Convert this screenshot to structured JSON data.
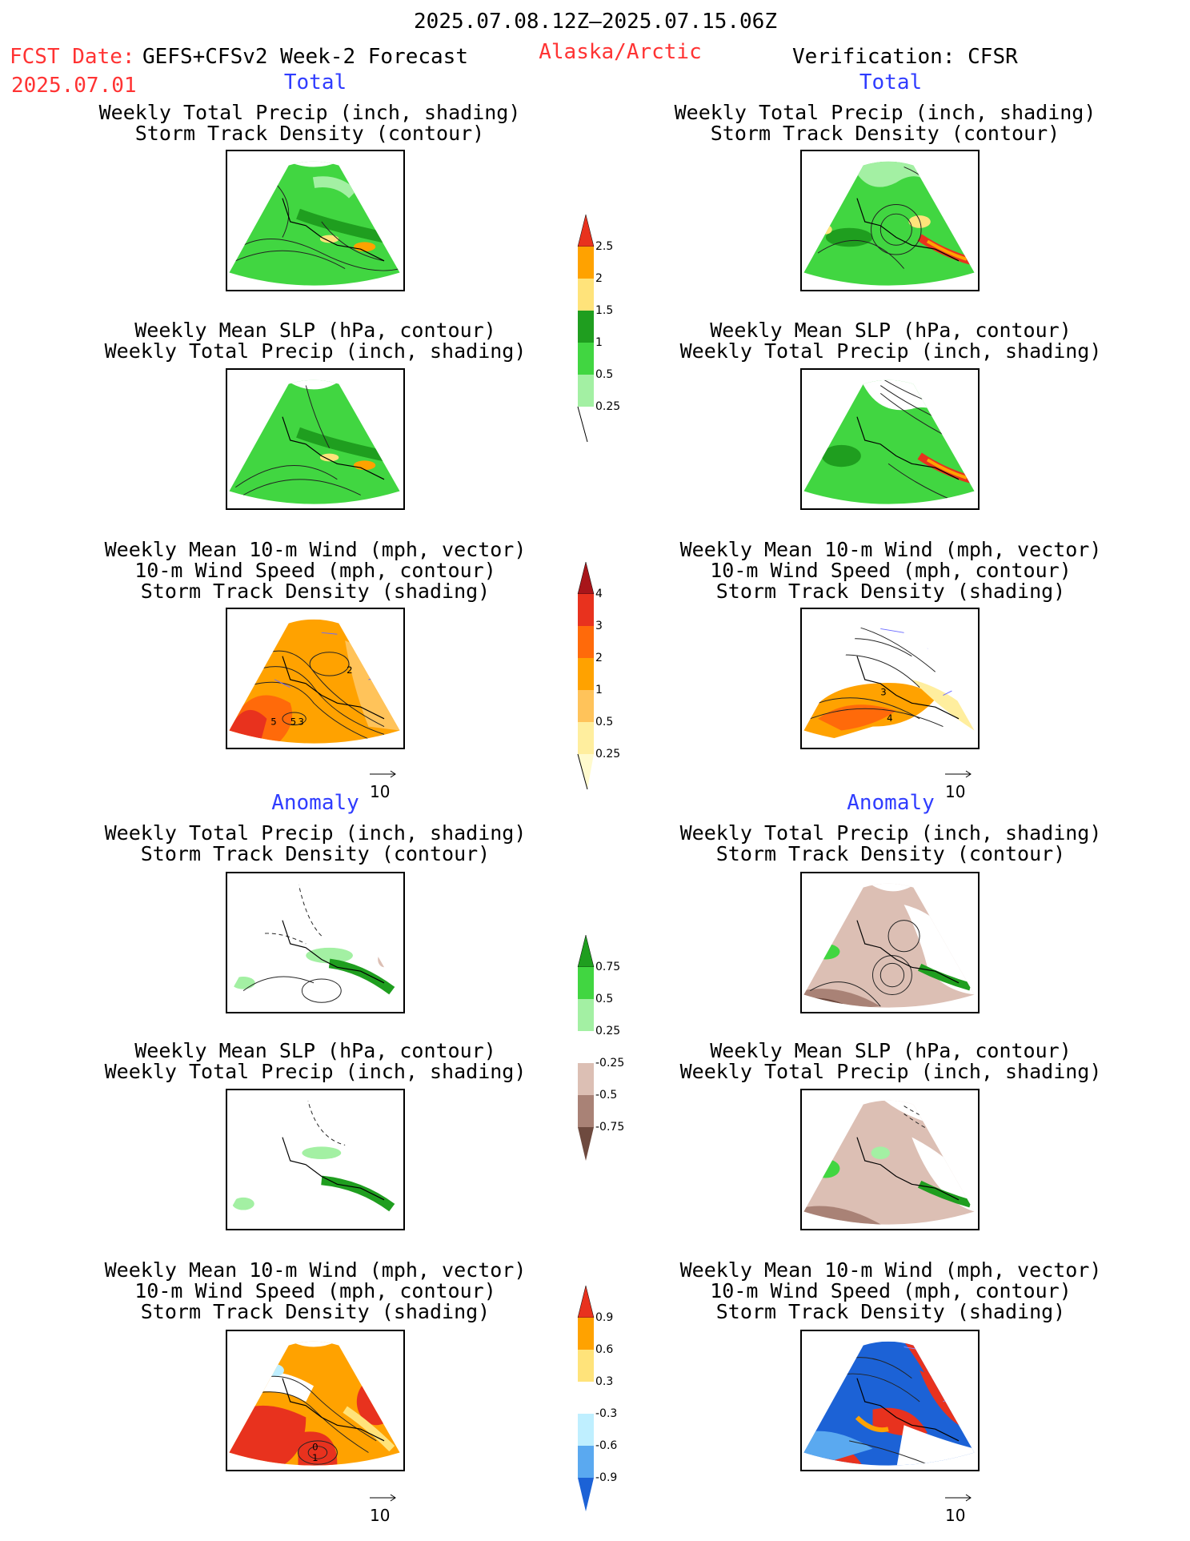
{
  "header": {
    "period": "2025.07.08.12Z–2025.07.15.06Z",
    "fcst_label": "FCST Date:",
    "fcst_model": "GEFS+CFSv2 Week-2 Forecast",
    "fcst_date": "2025.07.01",
    "region": "Alaska/Arctic",
    "verification": "Verification: CFSR"
  },
  "sections": {
    "total": "Total",
    "anomaly": "Anomaly"
  },
  "titles": {
    "precip_storm": [
      "Weekly Total Precip (inch, shading)",
      "Storm Track Density (contour)"
    ],
    "slp_precip": [
      "Weekly Mean SLP (hPa, contour)",
      "Weekly Total Precip (inch, shading)"
    ],
    "wind_storm": [
      "Weekly Mean 10-m Wind (mph, vector)",
      "10-m Wind Speed (mph, contour)",
      "Storm Track Density (shading)"
    ]
  },
  "vector_reference": "10",
  "colorbars": {
    "precip_total": {
      "labels": [
        "2.5",
        "2",
        "1.5",
        "1",
        "0.5",
        "0.25"
      ],
      "colors": [
        "#e8321e",
        "#ffa200",
        "#ffe37a",
        "#1f9e1f",
        "#41d641",
        "#a3f0a3"
      ]
    },
    "storm_total": {
      "labels": [
        "4",
        "3",
        "2",
        "1",
        "0.5",
        "0.25"
      ],
      "colors": [
        "#a8151a",
        "#e8321e",
        "#ff6a0a",
        "#ffa200",
        "#ffc35a",
        "#ffee9e",
        "#fffacd"
      ]
    },
    "precip_anom": {
      "labels": [
        "0.75",
        "0.5",
        "0.25",
        "-0.25",
        "-0.5",
        "-0.75"
      ],
      "colors": [
        "#1f9e1f",
        "#41d641",
        "#a3f0a3",
        "#ffffff",
        "#dcbfb4",
        "#a98276",
        "#6e4a3f"
      ]
    },
    "storm_anom": {
      "labels": [
        "0.9",
        "0.6",
        "0.3",
        "-0.3",
        "-0.6",
        "-0.9"
      ],
      "colors": [
        "#e8321e",
        "#ffa200",
        "#ffe37a",
        "#ffffff",
        "#bfefff",
        "#5aa9f0",
        "#1c62d6"
      ]
    }
  },
  "map_labels": {
    "fc_wind_total": [
      "2",
      "5",
      "5",
      "3"
    ],
    "obs_wind_total": [
      "3",
      "4"
    ],
    "fc_wind_anom": [
      "0",
      "1"
    ]
  }
}
